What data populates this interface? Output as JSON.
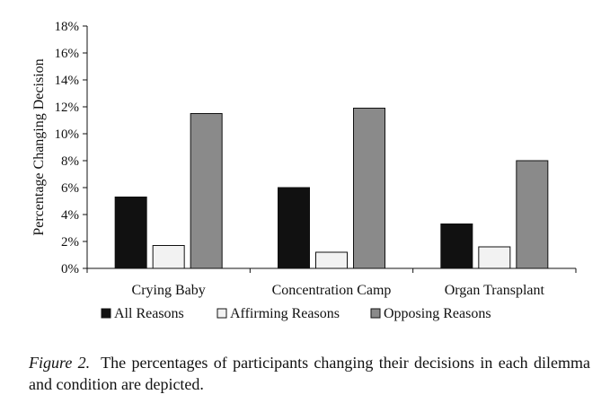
{
  "chart_data": {
    "type": "bar",
    "ylabel": "Percentage Changing Decision",
    "xlabel": "",
    "ylim": [
      0,
      18
    ],
    "yticks": [
      "0%",
      "2%",
      "4%",
      "6%",
      "8%",
      "10%",
      "12%",
      "14%",
      "16%",
      "18%"
    ],
    "categories": [
      "Crying Baby",
      "Concentration Camp",
      "Organ Transplant"
    ],
    "series": [
      {
        "name": "All Reasons",
        "color": "#111111",
        "values": [
          5.3,
          6.0,
          3.3
        ]
      },
      {
        "name": "Affirming Reasons",
        "color": "#f2f2f2",
        "values": [
          1.7,
          1.2,
          1.6
        ]
      },
      {
        "name": "Opposing Reasons",
        "color": "#8a8a8a",
        "values": [
          11.5,
          11.9,
          8.0
        ]
      }
    ],
    "legend_position": "bottom",
    "grid": false
  },
  "caption": {
    "label": "Figure 2.",
    "text": "The percentages of participants changing their decisions in each dilemma and condition are depicted."
  }
}
